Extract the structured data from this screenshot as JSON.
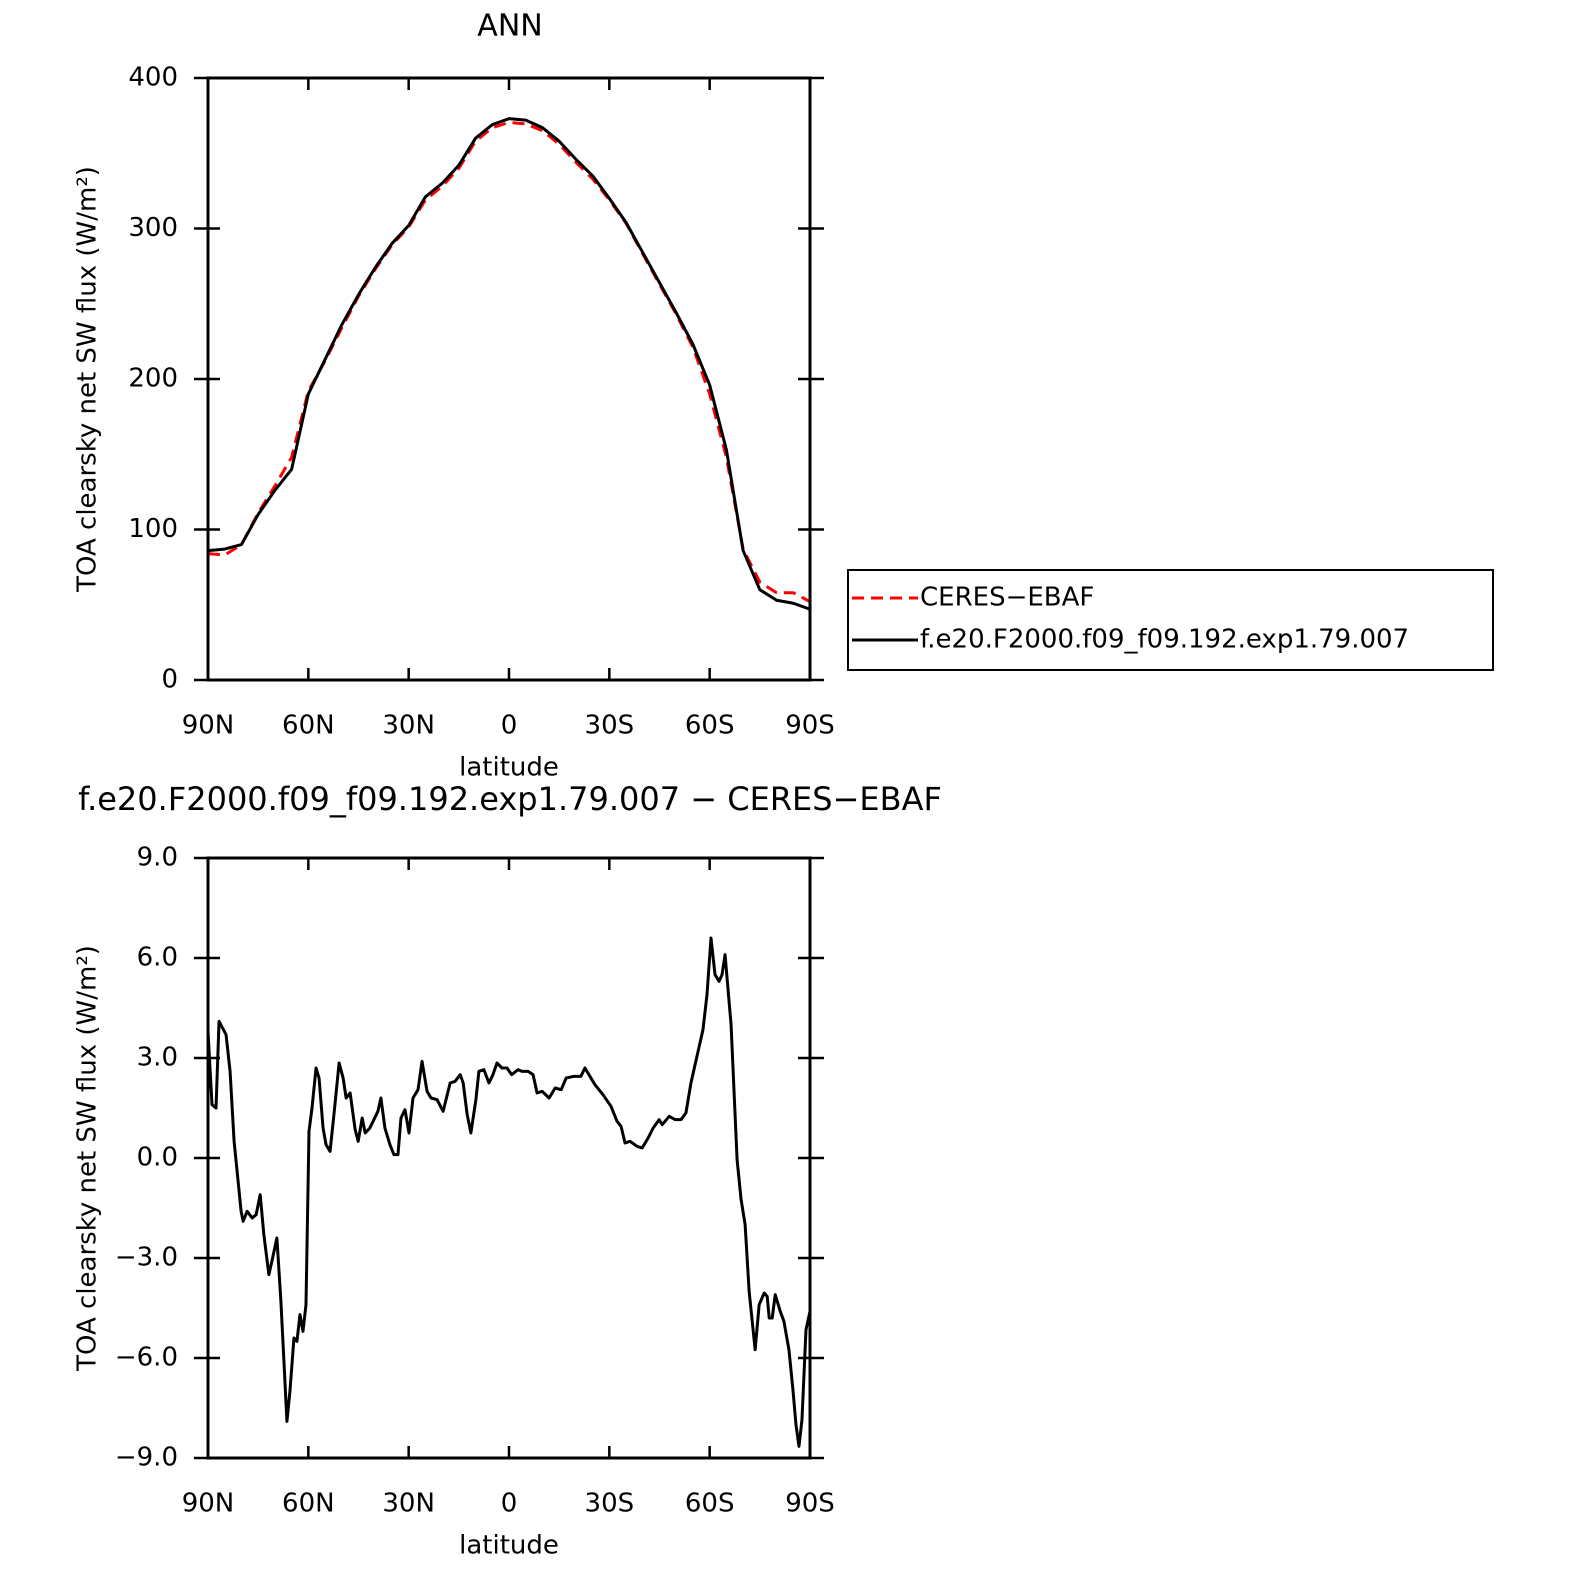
{
  "chart_data": [
    {
      "type": "line",
      "title": "ANN",
      "xlabel": "latitude",
      "ylabel": "TOA clearsky net SW flux (W/m²)",
      "x": [
        90,
        85,
        80,
        75,
        70,
        65,
        60,
        55,
        50,
        45,
        40,
        35,
        30,
        25,
        20,
        15,
        10,
        5,
        0,
        -5,
        -10,
        -15,
        -20,
        -25,
        -30,
        -35,
        -40,
        -45,
        -50,
        -55,
        -60,
        -65,
        -70,
        -75,
        -80,
        -85,
        -90
      ],
      "series": [
        {
          "name": "CERES−EBAF",
          "color": "#ff0000",
          "linestyle": "dashed",
          "values": [
            84,
            83,
            90,
            111,
            129,
            148,
            192,
            212,
            234,
            255,
            273,
            289,
            301,
            319,
            328,
            340,
            358,
            367,
            370.5,
            369.5,
            365,
            356,
            344,
            333,
            319,
            303.5,
            283,
            263,
            243,
            221,
            190,
            148,
            87,
            65,
            58,
            58,
            52
          ]
        },
        {
          "name": "f.e20.F2000.f09_f09.192.exp1.79.007",
          "color": "#000000",
          "linestyle": "solid",
          "values": [
            86,
            87,
            90,
            110,
            126,
            140,
            190,
            213,
            236,
            256,
            274,
            290,
            302,
            321,
            330,
            342,
            360,
            369,
            373,
            372,
            367,
            358,
            346,
            335,
            320,
            304,
            284,
            264,
            244,
            223,
            196,
            153,
            86,
            60,
            53,
            51,
            47
          ]
        }
      ],
      "xlim": [
        90,
        -90
      ],
      "ylim": [
        0,
        400
      ],
      "xticks": [
        {
          "value": 90,
          "label": "90N"
        },
        {
          "value": 60,
          "label": "60N"
        },
        {
          "value": 30,
          "label": "30N"
        },
        0,
        {
          "value": -30,
          "label": "30S"
        },
        {
          "value": -60,
          "label": "60S"
        },
        {
          "value": -90,
          "label": "90S"
        }
      ],
      "yticks": [
        0,
        100,
        200,
        300,
        400
      ]
    },
    {
      "type": "line",
      "title": "f.e20.F2000.f09_f09.192.exp1.79.007 − CERES−EBAF",
      "xlabel": "latitude",
      "ylabel": "TOA clearsky net SW flux (W/m²)",
      "x": [
        90,
        88.8,
        87.6,
        86.7,
        84.6,
        83.4,
        82.2,
        81.3,
        80.1,
        79.5,
        78.3,
        76.8,
        75.6,
        74.4,
        73.3,
        71.8,
        70.9,
        69.4,
        68.2,
        67.3,
        66.4,
        65.5,
        64.3,
        63.4,
        62.5,
        61.6,
        60.7,
        59.8,
        58.9,
        57.7,
        56.8,
        55.6,
        54.7,
        53.5,
        52.3,
        50.8,
        49.6,
        48.7,
        47.5,
        46.0,
        45.1,
        43.9,
        43.0,
        41.6,
        40.4,
        39.2,
        38.3,
        37.1,
        35.6,
        34.4,
        33.2,
        32.3,
        31.1,
        29.9,
        28.7,
        27.2,
        26.0,
        24.5,
        23.3,
        21.5,
        19.7,
        17.6,
        16.1,
        14.6,
        13.7,
        12.5,
        11.4,
        9.9,
        9.0,
        7.5,
        6.0,
        4.8,
        3.6,
        2.1,
        0.6,
        -0.8,
        -2.7,
        -3.9,
        -5.7,
        -7.2,
        -8.4,
        -9.9,
        -12.0,
        -13.8,
        -15.6,
        -17.1,
        -19.4,
        -21.5,
        -22.7,
        -23.9,
        -25.7,
        -28.1,
        -30.5,
        -32.3,
        -33.5,
        -34.7,
        -36.2,
        -38.3,
        -39.8,
        -41.6,
        -43.1,
        -44.9,
        -45.8,
        -47.9,
        -49.7,
        -51.4,
        -52.9,
        -54.4,
        -56.2,
        -58.0,
        -59.2,
        -60.4,
        -61.6,
        -62.8,
        -63.7,
        -64.6,
        -66.4,
        -68.2,
        -69.4,
        -70.6,
        -71.8,
        -73.6,
        -74.8,
        -76.3,
        -77.2,
        -77.8,
        -78.7,
        -79.6,
        -81.1,
        -82.2,
        -83.7,
        -84.9,
        -85.8,
        -86.7,
        -87.6,
        -88.8,
        -90.0
      ],
      "values": [
        3.8,
        1.6,
        1.5,
        4.1,
        3.7,
        2.6,
        0.5,
        -0.4,
        -1.6,
        -1.9,
        -1.6,
        -1.8,
        -1.7,
        -1.1,
        -2.3,
        -3.5,
        -3.1,
        -2.4,
        -4.3,
        -6.1,
        -7.9,
        -7.0,
        -5.4,
        -5.5,
        -4.7,
        -5.2,
        -4.4,
        0.8,
        1.5,
        2.7,
        2.4,
        0.9,
        0.4,
        0.2,
        1.35,
        2.85,
        2.4,
        1.8,
        1.95,
        0.85,
        0.5,
        1.2,
        0.75,
        0.9,
        1.15,
        1.4,
        1.8,
        0.9,
        0.4,
        0.1,
        0.1,
        1.2,
        1.45,
        0.75,
        1.8,
        2.05,
        2.9,
        2.0,
        1.8,
        1.75,
        1.4,
        2.25,
        2.3,
        2.5,
        2.25,
        1.3,
        0.75,
        1.75,
        2.6,
        2.65,
        2.25,
        2.5,
        2.85,
        2.7,
        2.7,
        2.5,
        2.65,
        2.6,
        2.6,
        2.5,
        1.95,
        2.0,
        1.8,
        2.1,
        2.05,
        2.4,
        2.45,
        2.45,
        2.7,
        2.5,
        2.2,
        1.9,
        1.55,
        1.1,
        0.95,
        0.45,
        0.5,
        0.35,
        0.3,
        0.6,
        0.9,
        1.15,
        1.0,
        1.25,
        1.15,
        1.15,
        1.35,
        2.25,
        3.05,
        3.85,
        4.9,
        6.6,
        5.5,
        5.3,
        5.5,
        6.1,
        4.0,
        -0.05,
        -1.25,
        -2.0,
        -4.0,
        -5.75,
        -4.4,
        -4.05,
        -4.15,
        -4.8,
        -4.8,
        -4.1,
        -4.6,
        -4.9,
        -5.75,
        -6.95,
        -8.0,
        -8.65,
        -7.85,
        -5.15,
        -4.6
      ],
      "color": "#000000",
      "xlim": [
        90,
        -90
      ],
      "ylim": [
        -9,
        9
      ],
      "xticks": [
        {
          "value": 90,
          "label": "90N"
        },
        {
          "value": 60,
          "label": "60N"
        },
        {
          "value": 30,
          "label": "30N"
        },
        0,
        {
          "value": -30,
          "label": "30S"
        },
        {
          "value": -60,
          "label": "60S"
        },
        {
          "value": -90,
          "label": "90S"
        }
      ],
      "yticks": [
        {
          "value": -9,
          "label": "−9.0"
        },
        {
          "value": -6,
          "label": "−6.0"
        },
        {
          "value": -3,
          "label": "−3.0"
        },
        {
          "value": 0,
          "label": "0.0"
        },
        {
          "value": 3,
          "label": "3.0"
        },
        {
          "value": 6,
          "label": "6.0"
        },
        {
          "value": 9,
          "label": "9.0"
        }
      ]
    }
  ]
}
